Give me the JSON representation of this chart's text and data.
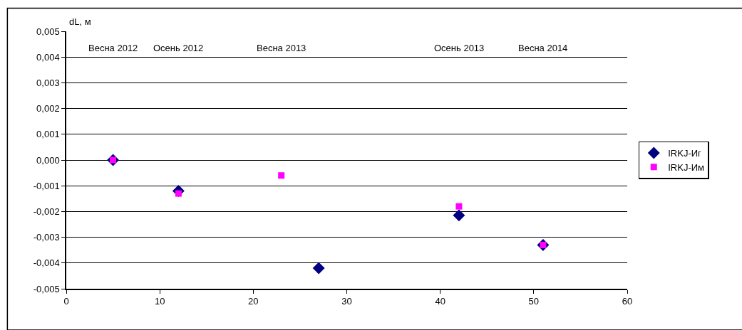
{
  "chart_data": {
    "type": "scatter",
    "ylabel": "dL, м",
    "xlim": [
      0,
      60
    ],
    "xticks": [
      0,
      10,
      20,
      30,
      40,
      50,
      60
    ],
    "ylim": [
      -0.005,
      0.005
    ],
    "yticks": [
      {
        "value": -0.005,
        "label": "-0,005"
      },
      {
        "value": -0.004,
        "label": "-0,004"
      },
      {
        "value": -0.003,
        "label": "-0,003"
      },
      {
        "value": -0.002,
        "label": "-0,002"
      },
      {
        "value": -0.001,
        "label": "-0,001"
      },
      {
        "value": 0,
        "label": "0,000"
      },
      {
        "value": 0.001,
        "label": "0,001"
      },
      {
        "value": 0.002,
        "label": "0,002"
      },
      {
        "value": 0.003,
        "label": "0,003"
      },
      {
        "value": 0.004,
        "label": "0,004"
      },
      {
        "value": 0.005,
        "label": "0,005"
      }
    ],
    "grid": "y",
    "legend": "right",
    "series": [
      {
        "name": "IRKJ-Иг",
        "color": "#000080",
        "marker": "diamond",
        "x": [
          5,
          12,
          27,
          42,
          51
        ],
        "values": [
          0.0,
          -0.0012,
          -0.0042,
          -0.00215,
          -0.0033
        ]
      },
      {
        "name": "IRKJ-Им",
        "color": "#ff00ff",
        "marker": "square",
        "x": [
          5,
          12,
          23,
          42,
          51
        ],
        "values": [
          0.0,
          -0.0013,
          -0.0006,
          -0.0018,
          -0.0033
        ]
      }
    ],
    "annotations": [
      "Весна 2012",
      "Осень 2012",
      "Весна 2013",
      "Осень 2013",
      "Весна 2014"
    ]
  }
}
